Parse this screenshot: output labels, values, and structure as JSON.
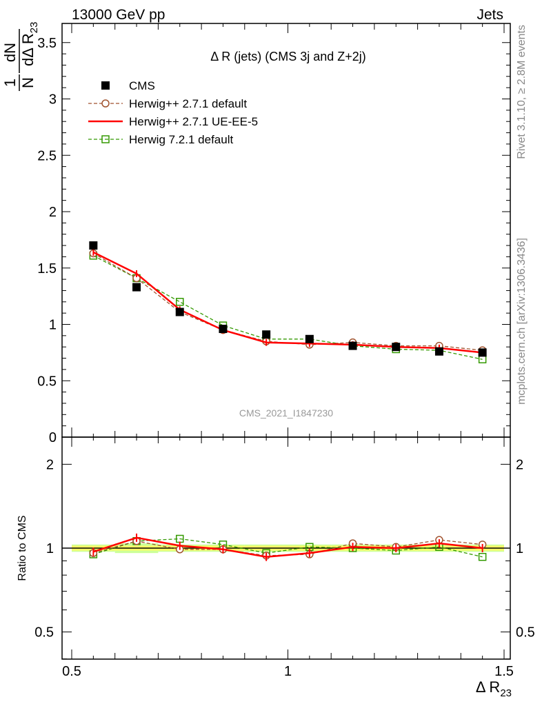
{
  "header": {
    "left": "13000 GeV pp",
    "right": "Jets"
  },
  "side_text": {
    "rivet": "Rivet 3.1.10, ≥ 2.8M events",
    "mcplots": "mcplots.cern.ch [arXiv:1306.3436]"
  },
  "watermark": "CMS_2021_I1847230",
  "colors": {
    "cms": "#000000",
    "herwigpp_default": "#a0522d",
    "herwigpp_ueee5": "#ff0000",
    "herwig7_default": "#339900",
    "band_inner": "#ffff66",
    "band_outer": "#ccff99"
  },
  "chart_data": [
    {
      "type": "scatter",
      "panel": "main",
      "title": "Δ R (jets) (CMS 3j and Z+2j)",
      "ylabel": "1/N dN/dΔ R23",
      "ylim": [
        0,
        3.65
      ],
      "yticks": [
        "0",
        "0.5",
        "1",
        "1.5",
        "2",
        "2.5",
        "3",
        "3.5"
      ],
      "legend": "top-left",
      "x": [
        0.55,
        0.65,
        0.75,
        0.85,
        0.95,
        1.05,
        1.15,
        1.25,
        1.35,
        1.45
      ],
      "series": [
        {
          "name": "CMS",
          "style": "markers-square",
          "values": [
            1.7,
            1.33,
            1.11,
            0.96,
            0.91,
            0.87,
            0.81,
            0.8,
            0.76,
            0.75
          ]
        },
        {
          "name": "Herwig++ 2.7.1 default",
          "style": "dashed-circle",
          "values": [
            1.63,
            1.41,
            1.11,
            0.95,
            0.85,
            0.82,
            0.84,
            0.81,
            0.81,
            0.77
          ]
        },
        {
          "name": "Herwig++ 2.7.1 UE-EE-5",
          "style": "solid",
          "values": [
            1.64,
            1.45,
            1.13,
            0.95,
            0.84,
            0.83,
            0.82,
            0.8,
            0.79,
            0.75
          ]
        },
        {
          "name": "Herwig 7.2.1 default",
          "style": "dashed-square",
          "values": [
            1.61,
            1.41,
            1.2,
            0.99,
            0.87,
            0.87,
            0.81,
            0.78,
            0.77,
            0.69
          ]
        }
      ]
    },
    {
      "type": "line",
      "panel": "ratio",
      "ylabel": "Ratio to CMS",
      "xlabel": "Δ R23",
      "xlim": [
        0.5,
        1.5
      ],
      "ylim": [
        0.4,
        2.3
      ],
      "log_y": true,
      "yticks": [
        "0.5",
        "1",
        "2"
      ],
      "xticks": [
        "0.5",
        "1",
        "1.5"
      ],
      "x": [
        0.55,
        0.65,
        0.75,
        0.85,
        0.95,
        1.05,
        1.15,
        1.25,
        1.35,
        1.45
      ],
      "series": [
        {
          "name": "Herwig++ 2.7.1 default",
          "values": [
            0.96,
            1.06,
            0.99,
            0.99,
            0.94,
            0.95,
            1.04,
            1.01,
            1.07,
            1.03
          ]
        },
        {
          "name": "Herwig++ 2.7.1 UE-EE-5",
          "values": [
            0.97,
            1.09,
            1.02,
            0.99,
            0.93,
            0.96,
            1.01,
            1.0,
            1.04,
            1.0
          ]
        },
        {
          "name": "Herwig 7.2.1 default",
          "values": [
            0.95,
            1.06,
            1.08,
            1.03,
            0.96,
            1.01,
            1.0,
            0.98,
            1.01,
            0.93
          ]
        }
      ],
      "band_inner": [
        0.02,
        0.02,
        0.02,
        0.02,
        0.02,
        0.02,
        0.02,
        0.02,
        0.02,
        0.02
      ],
      "band_outer": [
        0.03,
        0.04,
        0.03,
        0.03,
        0.03,
        0.03,
        0.03,
        0.03,
        0.03,
        0.03
      ]
    }
  ]
}
